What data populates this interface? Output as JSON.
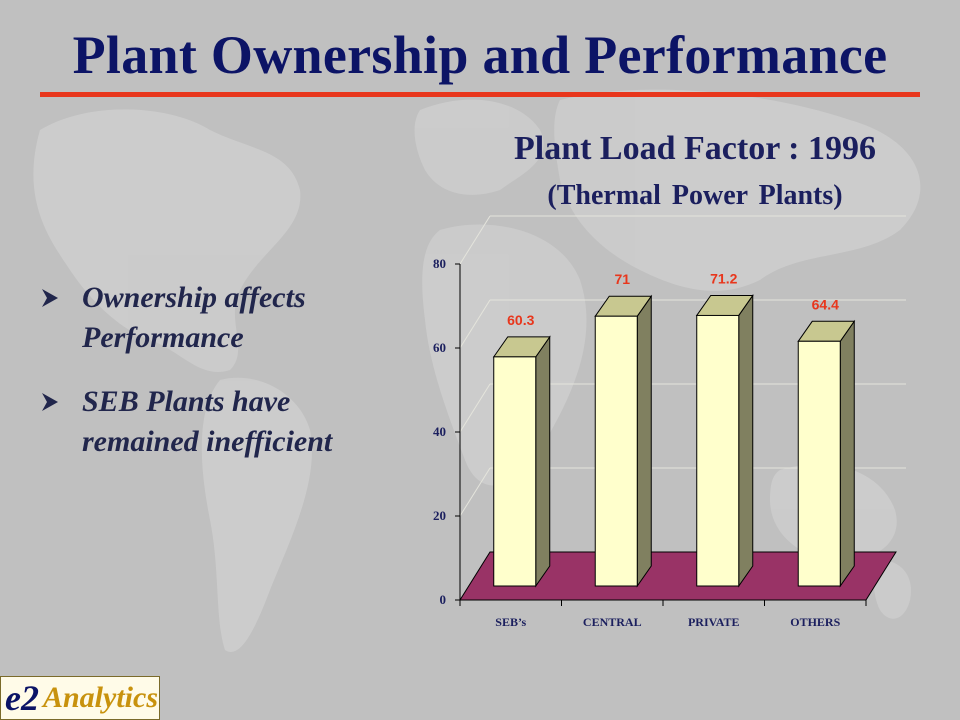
{
  "slide": {
    "title": "Plant Ownership and Performance",
    "bullets": [
      {
        "text": "Ownership affects Performance"
      },
      {
        "text": "SEB Plants have remained inefficient"
      }
    ],
    "logo": {
      "mark": "e2",
      "word": "Analytics"
    }
  },
  "colors": {
    "background": "#c0c0c0",
    "title": "#0c1466",
    "rule": "#e8361c",
    "bar_front": "#ffffcc",
    "bar_side": "#808060",
    "floor": "#993366",
    "value_label": "#e8361c"
  },
  "chart_data": {
    "type": "bar",
    "title": "Plant Load Factor : 1996",
    "subtitle": "(Thermal Power Plants)",
    "categories": [
      "SEB’s",
      "CENTRAL",
      "PRIVATE",
      "OTHERS"
    ],
    "values": [
      60.3,
      71,
      71.2,
      64.4
    ],
    "value_labels": [
      "60.3",
      "71",
      "71.2",
      "64.4"
    ],
    "yticks": [
      "0",
      "20",
      "40",
      "60",
      "80"
    ],
    "ylim": [
      0,
      80
    ],
    "grid": true,
    "style": "3d"
  }
}
